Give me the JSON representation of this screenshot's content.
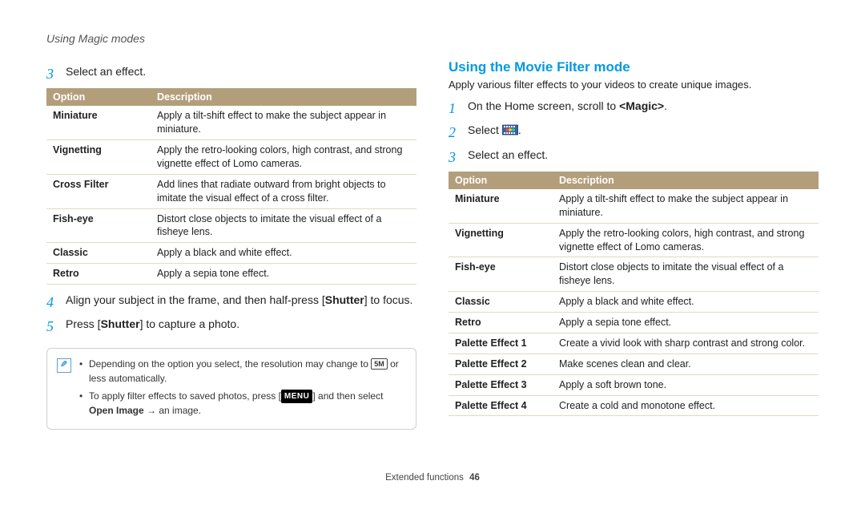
{
  "colors": {
    "accent": "#0099e5",
    "table_header_bg": "#b39e7b",
    "table_header_fg": "#ffffff",
    "row_border": "#e0d9cc",
    "note_border": "#cfcfcf",
    "note_icon": "#5aa0d8",
    "text": "#222222",
    "bg": "#ffffff"
  },
  "typography": {
    "body_pt": 13,
    "step_pt": 14,
    "stepnum_pt": 18,
    "title_pt": 17,
    "table_pt": 12.5,
    "note_pt": 12,
    "footer_pt": 11.5
  },
  "breadcrumb": "Using Magic modes",
  "left": {
    "step3_num": "3",
    "step3_text": "Select an effect.",
    "table": {
      "col_option": "Option",
      "col_desc": "Description",
      "rows": [
        {
          "opt": "Miniature",
          "desc": "Apply a tilt-shift effect to make the subject appear in miniature."
        },
        {
          "opt": "Vignetting",
          "desc": "Apply the retro-looking colors, high contrast, and strong vignette effect of Lomo cameras."
        },
        {
          "opt": "Cross Filter",
          "desc": "Add lines that radiate outward from bright objects to imitate the visual effect of a cross filter."
        },
        {
          "opt": "Fish-eye",
          "desc": "Distort close objects to imitate the visual effect of a fisheye lens."
        },
        {
          "opt": "Classic",
          "desc": "Apply a black and white effect."
        },
        {
          "opt": "Retro",
          "desc": "Apply a sepia tone effect."
        }
      ]
    },
    "step4_num": "4",
    "step4_pre": "Align your subject in the frame, and then half-press [",
    "step4_bold": "Shutter",
    "step4_post": "] to focus.",
    "step5_num": "5",
    "step5_pre": "Press [",
    "step5_bold": "Shutter",
    "step5_post": "] to capture a photo.",
    "note": {
      "n1_pre": "Depending on the option you select, the resolution may change to ",
      "n1_glyph": "5M",
      "n1_post": " or less automatically.",
      "n2_pre": "To apply filter effects to saved photos, press [",
      "n2_menu": "MENU",
      "n2_mid": "] and then select ",
      "n2_b1": "Open Image",
      "n2_arrow": " → ",
      "n2_tail": "an image."
    }
  },
  "right": {
    "title": "Using the Movie Filter mode",
    "intro": "Apply various filter effects to your videos to create unique images.",
    "step1_num": "1",
    "step1_pre": "On the Home screen, scroll to ",
    "step1_bold": "<Magic>",
    "step1_post": ".",
    "step2_num": "2",
    "step2_pre": "Select ",
    "step2_post": ".",
    "step3_num": "3",
    "step3_text": "Select an effect.",
    "table": {
      "col_option": "Option",
      "col_desc": "Description",
      "rows": [
        {
          "opt": "Miniature",
          "desc": "Apply a tilt-shift effect to make the subject appear in miniature."
        },
        {
          "opt": "Vignetting",
          "desc": "Apply the retro-looking colors, high contrast, and strong vignette effect of Lomo cameras."
        },
        {
          "opt": "Fish-eye",
          "desc": "Distort close objects to imitate the visual effect of a fisheye lens."
        },
        {
          "opt": "Classic",
          "desc": "Apply a black and white effect."
        },
        {
          "opt": "Retro",
          "desc": "Apply a sepia tone effect."
        },
        {
          "opt": "Palette Effect 1",
          "desc": "Create a vivid look with sharp contrast and strong color."
        },
        {
          "opt": "Palette Effect 2",
          "desc": "Make scenes clean and clear."
        },
        {
          "opt": "Palette Effect 3",
          "desc": "Apply a soft brown tone."
        },
        {
          "opt": "Palette Effect 4",
          "desc": "Create a cold and monotone effect."
        }
      ]
    }
  },
  "footer": {
    "section": "Extended functions",
    "page": "46"
  }
}
